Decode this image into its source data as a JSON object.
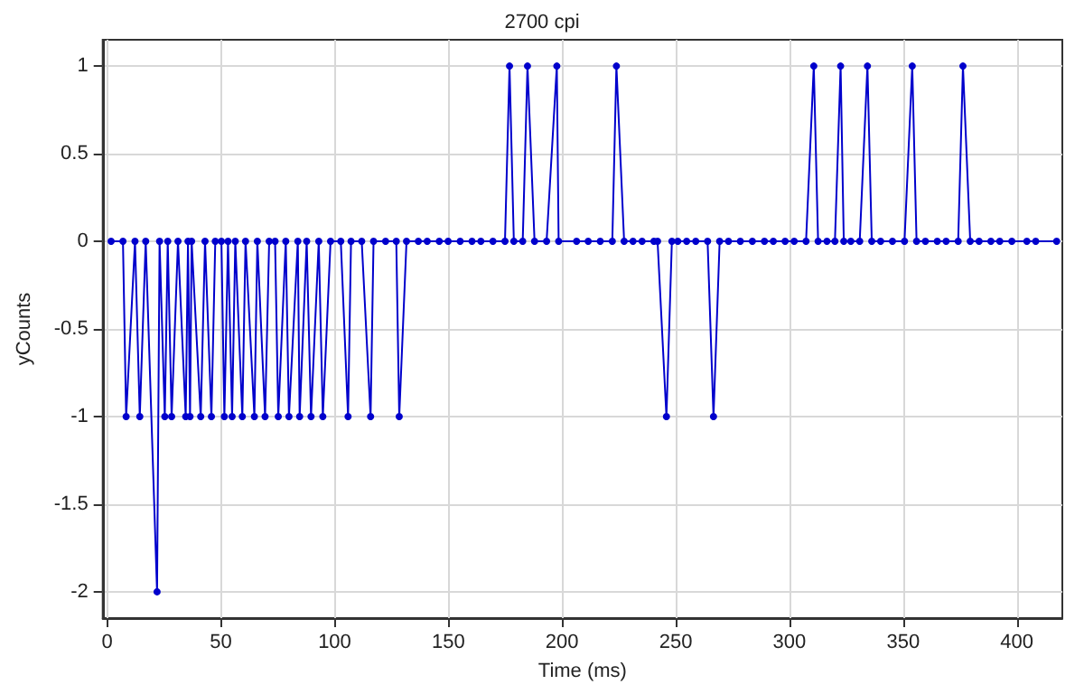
{
  "chart_data": {
    "type": "line",
    "title": "2700 cpi",
    "xlabel": "Time (ms)",
    "ylabel": "yCounts",
    "xlim": [
      -2,
      420
    ],
    "xticks": [
      0,
      50,
      100,
      150,
      200,
      250,
      300,
      350,
      400
    ],
    "ylim": [
      -2.15,
      1.15
    ],
    "yticks": [
      -2,
      -1.5,
      -1,
      -0.5,
      0,
      0.5,
      1
    ],
    "grid": true,
    "marker": "circle",
    "line_style": "solid",
    "series": [
      {
        "color": "#0000cc",
        "x": [
          1.7,
          6.9,
          8.3,
          12.2,
          14.3,
          16.9,
          21.9,
          23,
          25.3,
          26.6,
          28.3,
          31.1,
          34.5,
          35.5,
          36.4,
          37.1,
          41.1,
          43,
          45.8,
          47.5,
          50.2,
          51.5,
          53.1,
          54.9,
          56.3,
          59.4,
          60.8,
          64.7,
          66,
          69.4,
          71.2,
          73.8,
          75.2,
          78.5,
          79.9,
          83.8,
          84.6,
          87.7,
          89.6,
          93,
          94.8,
          98.2,
          102.7,
          105.9,
          107.2,
          111.9,
          115.8,
          117.1,
          122.4,
          127.1,
          128.4,
          131.6,
          136.8,
          140.7,
          146,
          149.9,
          155.2,
          160.4,
          164.3,
          169.6,
          174.9,
          176.9,
          178.8,
          182.7,
          184.8,
          187.9,
          193.2,
          197.7,
          198.5,
          206.4,
          211.5,
          216.8,
          222.1,
          223.9,
          227.3,
          231.2,
          235.2,
          240.4,
          242,
          245.9,
          248.3,
          250.9,
          254.8,
          258.8,
          264,
          266.6,
          269.3,
          273.2,
          278.4,
          283.7,
          289,
          292.9,
          298.1,
          302.1,
          307.3,
          310.7,
          312.6,
          316.5,
          320,
          322.5,
          323.9,
          327,
          330.9,
          334.3,
          336.2,
          340.1,
          345.3,
          350.6,
          354,
          355.9,
          359.8,
          365,
          368.9,
          374.2,
          376.3,
          379.5,
          383.4,
          388.6,
          392.5,
          397.8,
          404.4,
          408.3,
          417.5
        ],
        "values": [
          0,
          0,
          -1,
          0,
          -1,
          0,
          -2,
          0,
          -1,
          0,
          -1,
          0,
          -1,
          0,
          -1,
          0,
          -1,
          0,
          -1,
          0,
          0,
          -1,
          0,
          -1,
          0,
          -1,
          0,
          -1,
          0,
          -1,
          0,
          0,
          -1,
          0,
          -1,
          0,
          -1,
          0,
          -1,
          0,
          -1,
          0,
          0,
          -1,
          0,
          0,
          -1,
          0,
          0,
          0,
          -1,
          0,
          0,
          0,
          0,
          0,
          0,
          0,
          0,
          0,
          0,
          1,
          0,
          0,
          1,
          0,
          0,
          1,
          0,
          0,
          0,
          0,
          0,
          1,
          0,
          0,
          0,
          0,
          0,
          -1,
          0,
          0,
          0,
          0,
          0,
          -1,
          0,
          0,
          0,
          0,
          0,
          0,
          0,
          0,
          0,
          1,
          0,
          0,
          0,
          1,
          0,
          0,
          0,
          1,
          0,
          0,
          0,
          0,
          1,
          0,
          0,
          0,
          0,
          0,
          1,
          0,
          0,
          0,
          0,
          0,
          0,
          0,
          0
        ]
      }
    ]
  }
}
